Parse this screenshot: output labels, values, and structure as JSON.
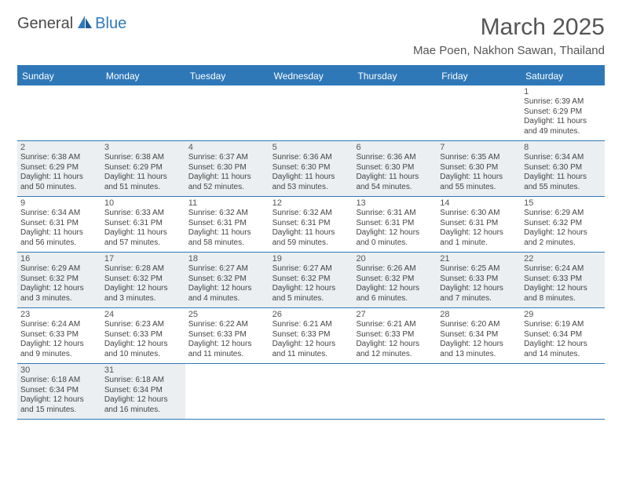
{
  "brand": {
    "part1": "General",
    "part2": "Blue"
  },
  "title": "March 2025",
  "location": "Mae Poen, Nakhon Sawan, Thailand",
  "colors": {
    "header_bg": "#2f78b8",
    "header_text": "#ffffff",
    "divider": "#2f78b8",
    "shaded_cell": "#eceff1",
    "page_bg": "#ffffff",
    "body_text": "#444444"
  },
  "day_headers": [
    "Sunday",
    "Monday",
    "Tuesday",
    "Wednesday",
    "Thursday",
    "Friday",
    "Saturday"
  ],
  "weeks": [
    [
      {
        "blank": true,
        "shaded": false
      },
      {
        "blank": true,
        "shaded": false
      },
      {
        "blank": true,
        "shaded": false
      },
      {
        "blank": true,
        "shaded": false
      },
      {
        "blank": true,
        "shaded": false
      },
      {
        "blank": true,
        "shaded": false
      },
      {
        "day": "1",
        "shaded": false,
        "sunrise": "Sunrise: 6:39 AM",
        "sunset": "Sunset: 6:29 PM",
        "daylight1": "Daylight: 11 hours",
        "daylight2": "and 49 minutes."
      }
    ],
    [
      {
        "day": "2",
        "shaded": true,
        "sunrise": "Sunrise: 6:38 AM",
        "sunset": "Sunset: 6:29 PM",
        "daylight1": "Daylight: 11 hours",
        "daylight2": "and 50 minutes."
      },
      {
        "day": "3",
        "shaded": true,
        "sunrise": "Sunrise: 6:38 AM",
        "sunset": "Sunset: 6:29 PM",
        "daylight1": "Daylight: 11 hours",
        "daylight2": "and 51 minutes."
      },
      {
        "day": "4",
        "shaded": true,
        "sunrise": "Sunrise: 6:37 AM",
        "sunset": "Sunset: 6:30 PM",
        "daylight1": "Daylight: 11 hours",
        "daylight2": "and 52 minutes."
      },
      {
        "day": "5",
        "shaded": true,
        "sunrise": "Sunrise: 6:36 AM",
        "sunset": "Sunset: 6:30 PM",
        "daylight1": "Daylight: 11 hours",
        "daylight2": "and 53 minutes."
      },
      {
        "day": "6",
        "shaded": true,
        "sunrise": "Sunrise: 6:36 AM",
        "sunset": "Sunset: 6:30 PM",
        "daylight1": "Daylight: 11 hours",
        "daylight2": "and 54 minutes."
      },
      {
        "day": "7",
        "shaded": true,
        "sunrise": "Sunrise: 6:35 AM",
        "sunset": "Sunset: 6:30 PM",
        "daylight1": "Daylight: 11 hours",
        "daylight2": "and 55 minutes."
      },
      {
        "day": "8",
        "shaded": true,
        "sunrise": "Sunrise: 6:34 AM",
        "sunset": "Sunset: 6:30 PM",
        "daylight1": "Daylight: 11 hours",
        "daylight2": "and 55 minutes."
      }
    ],
    [
      {
        "day": "9",
        "shaded": false,
        "sunrise": "Sunrise: 6:34 AM",
        "sunset": "Sunset: 6:31 PM",
        "daylight1": "Daylight: 11 hours",
        "daylight2": "and 56 minutes."
      },
      {
        "day": "10",
        "shaded": false,
        "sunrise": "Sunrise: 6:33 AM",
        "sunset": "Sunset: 6:31 PM",
        "daylight1": "Daylight: 11 hours",
        "daylight2": "and 57 minutes."
      },
      {
        "day": "11",
        "shaded": false,
        "sunrise": "Sunrise: 6:32 AM",
        "sunset": "Sunset: 6:31 PM",
        "daylight1": "Daylight: 11 hours",
        "daylight2": "and 58 minutes."
      },
      {
        "day": "12",
        "shaded": false,
        "sunrise": "Sunrise: 6:32 AM",
        "sunset": "Sunset: 6:31 PM",
        "daylight1": "Daylight: 11 hours",
        "daylight2": "and 59 minutes."
      },
      {
        "day": "13",
        "shaded": false,
        "sunrise": "Sunrise: 6:31 AM",
        "sunset": "Sunset: 6:31 PM",
        "daylight1": "Daylight: 12 hours",
        "daylight2": "and 0 minutes."
      },
      {
        "day": "14",
        "shaded": false,
        "sunrise": "Sunrise: 6:30 AM",
        "sunset": "Sunset: 6:31 PM",
        "daylight1": "Daylight: 12 hours",
        "daylight2": "and 1 minute."
      },
      {
        "day": "15",
        "shaded": false,
        "sunrise": "Sunrise: 6:29 AM",
        "sunset": "Sunset: 6:32 PM",
        "daylight1": "Daylight: 12 hours",
        "daylight2": "and 2 minutes."
      }
    ],
    [
      {
        "day": "16",
        "shaded": true,
        "sunrise": "Sunrise: 6:29 AM",
        "sunset": "Sunset: 6:32 PM",
        "daylight1": "Daylight: 12 hours",
        "daylight2": "and 3 minutes."
      },
      {
        "day": "17",
        "shaded": true,
        "sunrise": "Sunrise: 6:28 AM",
        "sunset": "Sunset: 6:32 PM",
        "daylight1": "Daylight: 12 hours",
        "daylight2": "and 3 minutes."
      },
      {
        "day": "18",
        "shaded": true,
        "sunrise": "Sunrise: 6:27 AM",
        "sunset": "Sunset: 6:32 PM",
        "daylight1": "Daylight: 12 hours",
        "daylight2": "and 4 minutes."
      },
      {
        "day": "19",
        "shaded": true,
        "sunrise": "Sunrise: 6:27 AM",
        "sunset": "Sunset: 6:32 PM",
        "daylight1": "Daylight: 12 hours",
        "daylight2": "and 5 minutes."
      },
      {
        "day": "20",
        "shaded": true,
        "sunrise": "Sunrise: 6:26 AM",
        "sunset": "Sunset: 6:32 PM",
        "daylight1": "Daylight: 12 hours",
        "daylight2": "and 6 minutes."
      },
      {
        "day": "21",
        "shaded": true,
        "sunrise": "Sunrise: 6:25 AM",
        "sunset": "Sunset: 6:33 PM",
        "daylight1": "Daylight: 12 hours",
        "daylight2": "and 7 minutes."
      },
      {
        "day": "22",
        "shaded": true,
        "sunrise": "Sunrise: 6:24 AM",
        "sunset": "Sunset: 6:33 PM",
        "daylight1": "Daylight: 12 hours",
        "daylight2": "and 8 minutes."
      }
    ],
    [
      {
        "day": "23",
        "shaded": false,
        "sunrise": "Sunrise: 6:24 AM",
        "sunset": "Sunset: 6:33 PM",
        "daylight1": "Daylight: 12 hours",
        "daylight2": "and 9 minutes."
      },
      {
        "day": "24",
        "shaded": false,
        "sunrise": "Sunrise: 6:23 AM",
        "sunset": "Sunset: 6:33 PM",
        "daylight1": "Daylight: 12 hours",
        "daylight2": "and 10 minutes."
      },
      {
        "day": "25",
        "shaded": false,
        "sunrise": "Sunrise: 6:22 AM",
        "sunset": "Sunset: 6:33 PM",
        "daylight1": "Daylight: 12 hours",
        "daylight2": "and 11 minutes."
      },
      {
        "day": "26",
        "shaded": false,
        "sunrise": "Sunrise: 6:21 AM",
        "sunset": "Sunset: 6:33 PM",
        "daylight1": "Daylight: 12 hours",
        "daylight2": "and 11 minutes."
      },
      {
        "day": "27",
        "shaded": false,
        "sunrise": "Sunrise: 6:21 AM",
        "sunset": "Sunset: 6:33 PM",
        "daylight1": "Daylight: 12 hours",
        "daylight2": "and 12 minutes."
      },
      {
        "day": "28",
        "shaded": false,
        "sunrise": "Sunrise: 6:20 AM",
        "sunset": "Sunset: 6:34 PM",
        "daylight1": "Daylight: 12 hours",
        "daylight2": "and 13 minutes."
      },
      {
        "day": "29",
        "shaded": false,
        "sunrise": "Sunrise: 6:19 AM",
        "sunset": "Sunset: 6:34 PM",
        "daylight1": "Daylight: 12 hours",
        "daylight2": "and 14 minutes."
      }
    ],
    [
      {
        "day": "30",
        "shaded": true,
        "sunrise": "Sunrise: 6:18 AM",
        "sunset": "Sunset: 6:34 PM",
        "daylight1": "Daylight: 12 hours",
        "daylight2": "and 15 minutes."
      },
      {
        "day": "31",
        "shaded": true,
        "sunrise": "Sunrise: 6:18 AM",
        "sunset": "Sunset: 6:34 PM",
        "daylight1": "Daylight: 12 hours",
        "daylight2": "and 16 minutes."
      },
      {
        "blank": true,
        "shaded": false
      },
      {
        "blank": true,
        "shaded": false
      },
      {
        "blank": true,
        "shaded": false
      },
      {
        "blank": true,
        "shaded": false
      },
      {
        "blank": true,
        "shaded": false
      }
    ]
  ]
}
